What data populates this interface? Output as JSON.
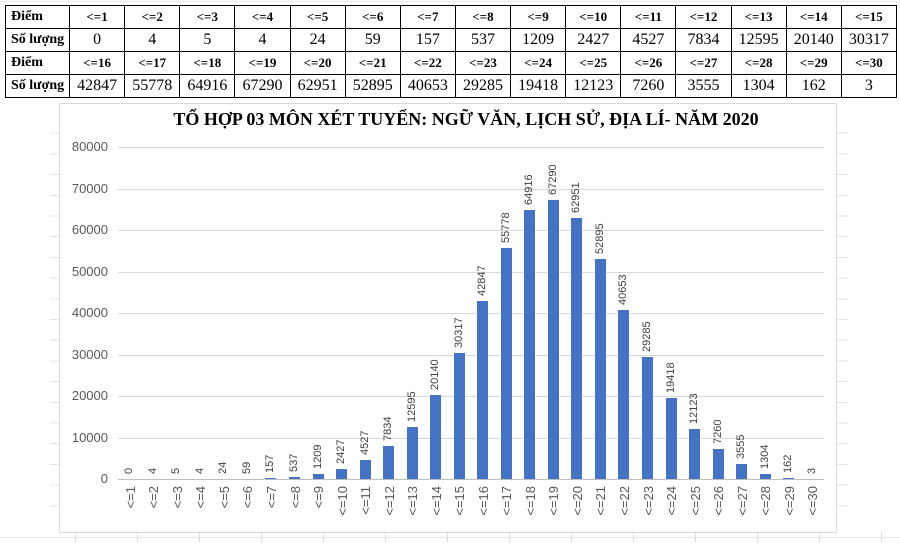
{
  "table": {
    "row_labels": [
      "Điểm",
      "Số lượng",
      "Điểm",
      "Số lượng"
    ],
    "rows": [
      [
        "<=1",
        "<=2",
        "<=3",
        "<=4",
        "<=5",
        "<=6",
        "<=7",
        "<=8",
        "<=9",
        "<=10",
        "<=11",
        "<=12",
        "<=13",
        "<=14",
        "<=15"
      ],
      [
        "0",
        "4",
        "5",
        "4",
        "24",
        "59",
        "157",
        "537",
        "1209",
        "2427",
        "4527",
        "7834",
        "12595",
        "20140",
        "30317"
      ],
      [
        "<=16",
        "<=17",
        "<=18",
        "<=19",
        "<=20",
        "<=21",
        "<=22",
        "<=23",
        "<=24",
        "<=25",
        "<=26",
        "<=27",
        "<=28",
        "<=29",
        "<=30"
      ],
      [
        "42847",
        "55778",
        "64916",
        "67290",
        "62951",
        "52895",
        "40653",
        "29285",
        "19418",
        "12123",
        "7260",
        "3555",
        "1304",
        "162",
        "3"
      ]
    ]
  },
  "chart_data": {
    "type": "bar",
    "title": "TỔ HỢP 03 MÔN XÉT TUYỂN: NGỮ VĂN, LỊCH SỬ, ĐỊA LÍ- NĂM 2020",
    "categories": [
      "<=1",
      "<=2",
      "<=3",
      "<=4",
      "<=5",
      "<=6",
      "<=7",
      "<=8",
      "<=9",
      "<=10",
      "<=11",
      "<=12",
      "<=13",
      "<=14",
      "<=15",
      "<=16",
      "<=17",
      "<=18",
      "<=19",
      "<=20",
      "<=21",
      "<=22",
      "<=23",
      "<=24",
      "<=25",
      "<=26",
      "<=27",
      "<=28",
      "<=29",
      "<=30"
    ],
    "values": [
      0,
      4,
      5,
      4,
      24,
      59,
      157,
      537,
      1209,
      2427,
      4527,
      7834,
      12595,
      20140,
      30317,
      42847,
      55778,
      64916,
      67290,
      62951,
      52895,
      40653,
      29285,
      19418,
      12123,
      7260,
      3555,
      1304,
      162,
      3
    ],
    "data_labels": [
      "0",
      "4",
      "5",
      "4",
      "24",
      "59",
      "157",
      "537",
      "1209",
      "2427",
      "4527",
      "7834",
      "12595",
      "20140",
      "30317",
      "42847",
      "55778",
      "64916",
      "67290",
      "62951",
      "52895",
      "40653",
      "29285",
      "19418",
      "12123",
      "7260",
      "3555",
      "1304",
      "162",
      "3"
    ],
    "xlabel": "",
    "ylabel": "",
    "ylim": [
      0,
      80000
    ],
    "yticks": [
      "0",
      "10000",
      "20000",
      "30000",
      "40000",
      "50000",
      "60000",
      "70000",
      "80000"
    ],
    "grid": true,
    "legend": "none",
    "bar_color": "#4472c4",
    "gridline_color": "#d9d9d9",
    "axis_label_color": "#595959",
    "data_label_color": "#404040",
    "data_label_rotation": -90,
    "x_label_rotation": -90
  }
}
